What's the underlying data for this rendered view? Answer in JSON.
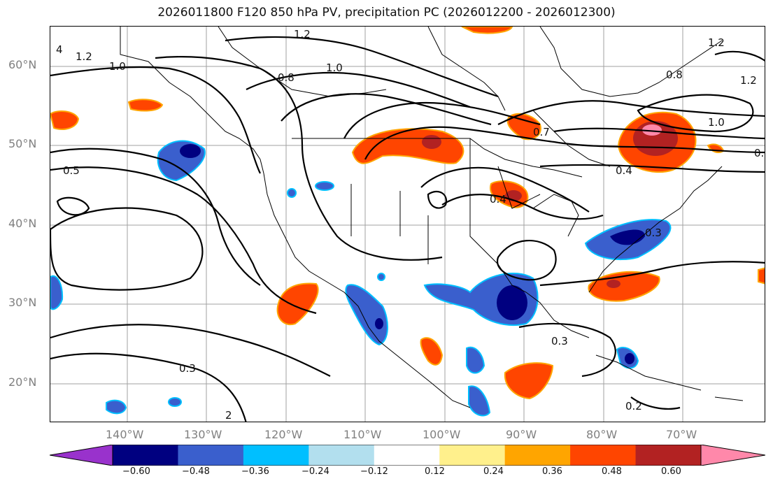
{
  "title": "2026011800 F120 850 hPa PV, precipitation PC (2026012200 - 2026012300)",
  "latitude_labels": [
    "60°N",
    "50°N",
    "40°N",
    "30°N",
    "20°N"
  ],
  "longitude_labels": [
    "140°W",
    "130°W",
    "120°W",
    "110°W",
    "100°W",
    "90°W",
    "80°W",
    "70°W"
  ],
  "colorbar": {
    "ticks": [
      "−0.60",
      "−0.48",
      "−0.36",
      "−0.24",
      "−0.12",
      "0.12",
      "0.24",
      "0.36",
      "0.48",
      "0.60"
    ],
    "colors": [
      "#9932cc",
      "#000080",
      "#3a5fcd",
      "#00bfff",
      "#b2dfee",
      "#ffffff",
      "#fff08c",
      "#ffa500",
      "#ff4500",
      "#b22222",
      "#ff88aa"
    ]
  },
  "contour_labels": [
    "1.2",
    "4",
    "1.2",
    "1.0",
    "0.8",
    "1.0",
    "0.5",
    "0.7",
    "0.4",
    "0.4",
    "0.3",
    "0.3",
    "0.3",
    "0.2",
    "2",
    "1.2",
    "1.2",
    "0.8",
    "1.0",
    "0."
  ]
}
